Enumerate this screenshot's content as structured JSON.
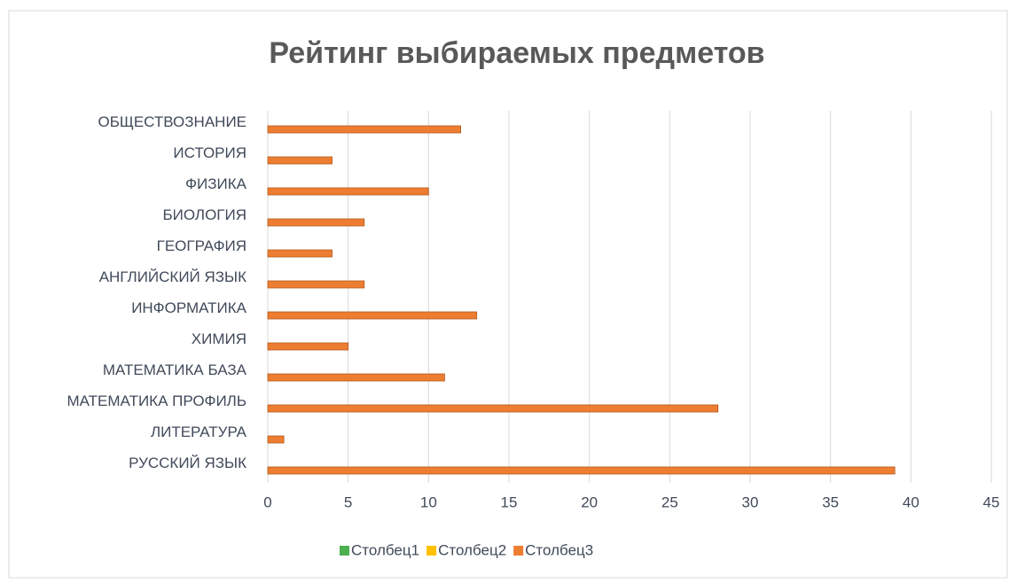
{
  "chart_data": {
    "type": "barh",
    "title": "Рейтинг выбираемых предметов",
    "categories": [
      "РУССКИЙ ЯЗЫК",
      "ЛИТЕРАТУРА",
      "МАТЕМАТИКА ПРОФИЛЬ",
      "МАТЕМАТИКА БАЗА",
      "ХИМИЯ",
      "ИНФОРМАТИКА",
      "АНГЛИЙСКИЙ ЯЗЫК",
      "ГЕОГРАФИЯ",
      "БИОЛОГИЯ",
      "ФИЗИКА",
      "ИСТОРИЯ",
      "ОБЩЕСТВОЗНАНИЕ"
    ],
    "series": [
      {
        "name": "Столбец1",
        "color": "#4caf50",
        "values": [
          null,
          null,
          null,
          null,
          null,
          null,
          null,
          null,
          null,
          null,
          null,
          null
        ]
      },
      {
        "name": "Столбец2",
        "color": "#ffc000",
        "values": [
          null,
          null,
          null,
          null,
          null,
          null,
          null,
          null,
          null,
          null,
          null,
          null
        ]
      },
      {
        "name": "Столбец3",
        "color": "#ed7d31",
        "values": [
          39,
          1,
          28,
          11,
          5,
          13,
          6,
          4,
          6,
          10,
          4,
          12
        ]
      }
    ],
    "xlim": [
      0,
      45
    ],
    "xticks": [
      0,
      5,
      10,
      15,
      20,
      25,
      30,
      35,
      40,
      45
    ],
    "grid": true,
    "legend": "bottom"
  }
}
